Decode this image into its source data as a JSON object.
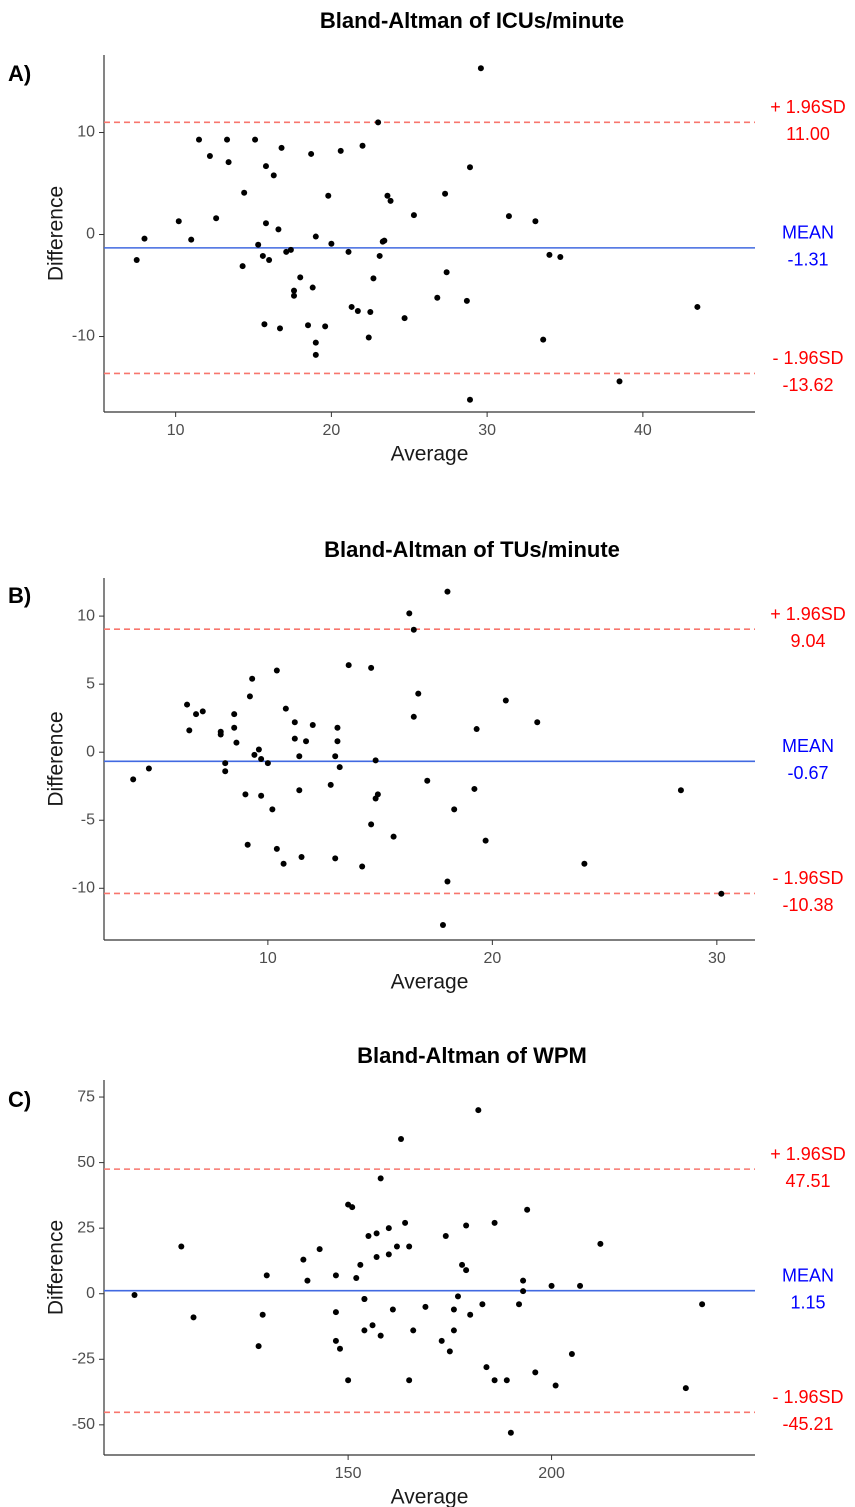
{
  "chart_data": [
    {
      "type": "scatter",
      "panel_label": "A)",
      "title": "Bland-Altman of ICUs/minute",
      "x_label": "Average",
      "y_label": "Difference",
      "color": "#000000",
      "xlim": [
        5.4,
        47.2
      ],
      "ylim": [
        -17.4,
        17.6
      ],
      "xticks": [
        10,
        20,
        30,
        40
      ],
      "yticks": [
        -10,
        0,
        10
      ],
      "x": [
        7.5,
        8.0,
        10.2,
        11.0,
        11.5,
        12.2,
        12.6,
        13.3,
        13.4,
        14.4,
        14.3,
        15.1,
        15.3,
        15.6,
        15.8,
        15.8,
        16.0,
        16.3,
        16.6,
        16.8,
        17.1,
        17.4,
        17.6,
        17.6,
        18.0,
        18.5,
        18.8,
        18.7,
        19.0,
        19.0,
        19.0,
        19.6,
        19.8,
        20.0,
        20.6,
        21.1,
        21.3,
        21.7,
        22.0,
        22.4,
        22.5,
        22.7,
        23.0,
        23.1,
        23.3,
        23.4,
        23.6,
        23.8,
        24.7,
        25.3,
        26.8,
        27.3,
        27.4,
        28.7,
        28.9,
        28.9,
        29.6,
        31.4,
        33.1,
        33.6,
        34.0,
        34.7,
        38.5,
        43.5,
        15.7,
        16.7
      ],
      "y": [
        -2.5,
        -0.4,
        1.3,
        -0.5,
        9.3,
        7.7,
        1.6,
        9.3,
        7.1,
        4.1,
        -3.1,
        9.3,
        -1.0,
        -2.1,
        6.7,
        1.1,
        -2.5,
        5.8,
        0.5,
        8.5,
        -1.7,
        -1.5,
        -5.5,
        -6.0,
        -4.2,
        -8.9,
        -5.2,
        7.9,
        -10.6,
        -0.2,
        -11.8,
        -9.0,
        3.8,
        -0.9,
        8.2,
        -1.7,
        -7.1,
        -7.5,
        8.7,
        -10.1,
        -7.6,
        -4.3,
        11.0,
        -2.1,
        -0.7,
        -0.6,
        3.8,
        3.3,
        -8.2,
        1.9,
        -6.2,
        4.0,
        -3.7,
        -6.5,
        6.6,
        -16.2,
        16.3,
        1.8,
        1.3,
        -10.3,
        -2.0,
        -2.2,
        -14.4,
        -7.1,
        -8.8,
        -9.2
      ],
      "hlines": {
        "names": [
          "+ 1.96SD",
          "MEAN",
          "- 1.96SD"
        ],
        "values": [
          11,
          -1.31,
          -13.62
        ],
        "value_labels": [
          "11.00",
          "-1.31",
          "-13.62"
        ],
        "colors": [
          "#f8766d",
          "#4169e1",
          "#f8766d"
        ],
        "label_colors": [
          "#ff0000",
          "#0000ff",
          "#ff0000"
        ],
        "dashed": [
          true,
          false,
          true
        ]
      }
    },
    {
      "type": "scatter",
      "panel_label": "B)",
      "title": "Bland-Altman of TUs/minute",
      "x_label": "Average",
      "y_label": "Difference",
      "color": "#000000",
      "xlim": [
        2.7,
        31.7
      ],
      "ylim": [
        -13.8,
        12.8
      ],
      "xticks": [
        10,
        20,
        30
      ],
      "yticks": [
        -10,
        -5,
        0,
        5,
        10
      ],
      "x": [
        4.0,
        4.7,
        6.4,
        6.5,
        6.8,
        7.1,
        7.9,
        7.9,
        8.1,
        8.1,
        8.5,
        8.5,
        8.6,
        9.0,
        9.1,
        9.2,
        9.3,
        9.4,
        9.6,
        9.7,
        9.7,
        10.0,
        10.2,
        10.4,
        10.4,
        10.7,
        10.8,
        11.2,
        11.2,
        11.4,
        11.4,
        11.5,
        11.7,
        12.0,
        12.8,
        13.0,
        13.0,
        13.1,
        13.1,
        13.2,
        13.6,
        14.2,
        14.6,
        14.6,
        14.8,
        14.8,
        14.9,
        15.6,
        16.3,
        16.5,
        16.5,
        16.7,
        17.1,
        17.8,
        18.0,
        18.0,
        18.3,
        19.2,
        19.3,
        19.7,
        20.6,
        22.0,
        24.1,
        28.4,
        30.2
      ],
      "y": [
        -2.0,
        -1.2,
        3.5,
        1.6,
        2.8,
        3.0,
        1.5,
        1.3,
        -0.8,
        -1.4,
        2.8,
        1.8,
        0.7,
        -3.1,
        -6.8,
        4.1,
        5.4,
        -0.2,
        0.2,
        -0.5,
        -3.2,
        -0.8,
        -4.2,
        -7.1,
        6.0,
        -8.2,
        3.2,
        2.2,
        1.0,
        -0.3,
        -2.8,
        -7.7,
        0.8,
        2.0,
        -2.4,
        -7.8,
        -0.3,
        1.8,
        0.8,
        -1.1,
        6.4,
        -8.4,
        -5.3,
        6.2,
        -0.6,
        -3.4,
        -3.1,
        -6.2,
        10.2,
        9.0,
        2.6,
        4.3,
        -2.1,
        -12.7,
        -9.5,
        11.8,
        -4.2,
        -2.7,
        1.7,
        -6.5,
        3.8,
        2.2,
        -8.2,
        -2.8,
        -10.4
      ],
      "hlines": {
        "names": [
          "+ 1.96SD",
          "MEAN",
          "- 1.96SD"
        ],
        "values": [
          9.04,
          -0.67,
          -10.38
        ],
        "value_labels": [
          "9.04",
          "-0.67",
          "-10.38"
        ],
        "colors": [
          "#f8766d",
          "#4169e1",
          "#f8766d"
        ],
        "label_colors": [
          "#ff0000",
          "#0000ff",
          "#ff0000"
        ],
        "dashed": [
          true,
          false,
          true
        ]
      }
    },
    {
      "type": "scatter",
      "panel_label": "C)",
      "title": "Bland-Altman of WPM",
      "x_label": "Average",
      "y_label": "Difference",
      "color": "#000000",
      "xlim": [
        90,
        250
      ],
      "ylim": [
        -61.5,
        81.5
      ],
      "xticks": [
        150,
        200
      ],
      "yticks": [
        -50,
        -25,
        0,
        25,
        50,
        75
      ],
      "x": [
        97.5,
        109,
        112,
        128,
        129,
        130,
        139,
        140,
        143,
        147,
        147,
        147,
        148,
        150,
        150,
        151,
        152,
        153,
        154,
        154,
        154,
        155,
        156,
        157,
        157,
        158,
        158,
        160,
        160,
        161,
        162,
        163,
        164,
        165,
        165,
        166,
        169,
        173,
        174,
        175,
        176,
        176,
        177,
        178,
        179,
        179,
        180,
        182,
        183,
        184,
        186,
        186,
        189,
        190,
        192,
        193,
        193,
        194,
        196,
        200,
        201,
        205,
        207,
        212,
        233,
        237
      ],
      "y": [
        -0.5,
        18,
        -9,
        -20,
        -8,
        7,
        13,
        5,
        17,
        7,
        -7,
        -18,
        -21,
        34,
        -33,
        33,
        6,
        11,
        -2,
        -2,
        -14,
        22,
        -12,
        14,
        23,
        -16,
        44,
        25,
        15,
        -6,
        18,
        59,
        27,
        -33,
        18,
        -14,
        -5,
        -18,
        22,
        -22,
        -14,
        -6,
        -1,
        11,
        9,
        26,
        -8,
        70,
        -4,
        -28,
        -33,
        27,
        -33,
        -53,
        -4,
        1,
        5,
        32,
        -30,
        3,
        -35,
        -23,
        3,
        19,
        -36,
        -4
      ],
      "hlines": {
        "names": [
          "+ 1.96SD",
          "MEAN",
          "- 1.96SD"
        ],
        "values": [
          47.51,
          1.15,
          -45.21
        ],
        "value_labels": [
          "47.51",
          "1.15",
          "-45.21"
        ],
        "colors": [
          "#f8766d",
          "#4169e1",
          "#f8766d"
        ],
        "label_colors": [
          "#ff0000",
          "#0000ff",
          "#ff0000"
        ],
        "dashed": [
          true,
          false,
          true
        ]
      }
    }
  ]
}
